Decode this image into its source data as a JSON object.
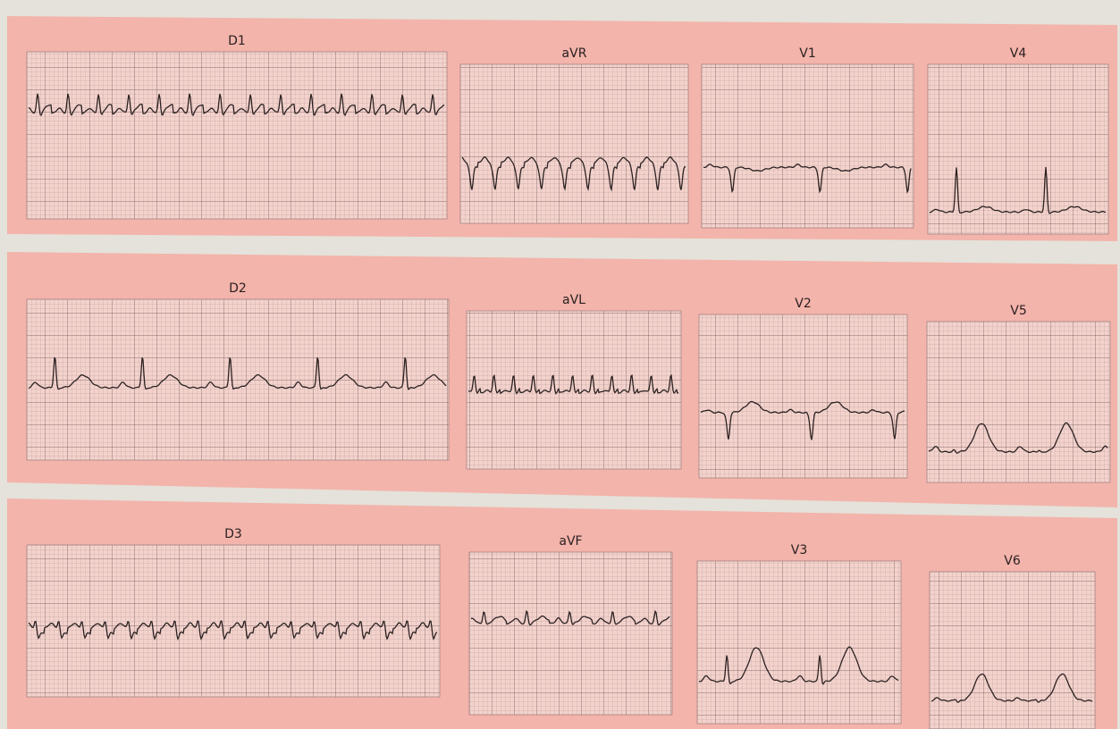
{
  "rows": [
    {
      "panels": [
        {
          "label": "D1"
        },
        {
          "label": "aVR"
        },
        {
          "label": "V1"
        },
        {
          "label": "V4"
        }
      ]
    },
    {
      "panels": [
        {
          "label": "D2"
        },
        {
          "label": "aVL"
        },
        {
          "label": "V2"
        },
        {
          "label": "V5"
        }
      ]
    },
    {
      "panels": [
        {
          "label": "D3"
        },
        {
          "label": "aVF"
        },
        {
          "label": "V3"
        },
        {
          "label": "V6"
        }
      ]
    }
  ]
}
